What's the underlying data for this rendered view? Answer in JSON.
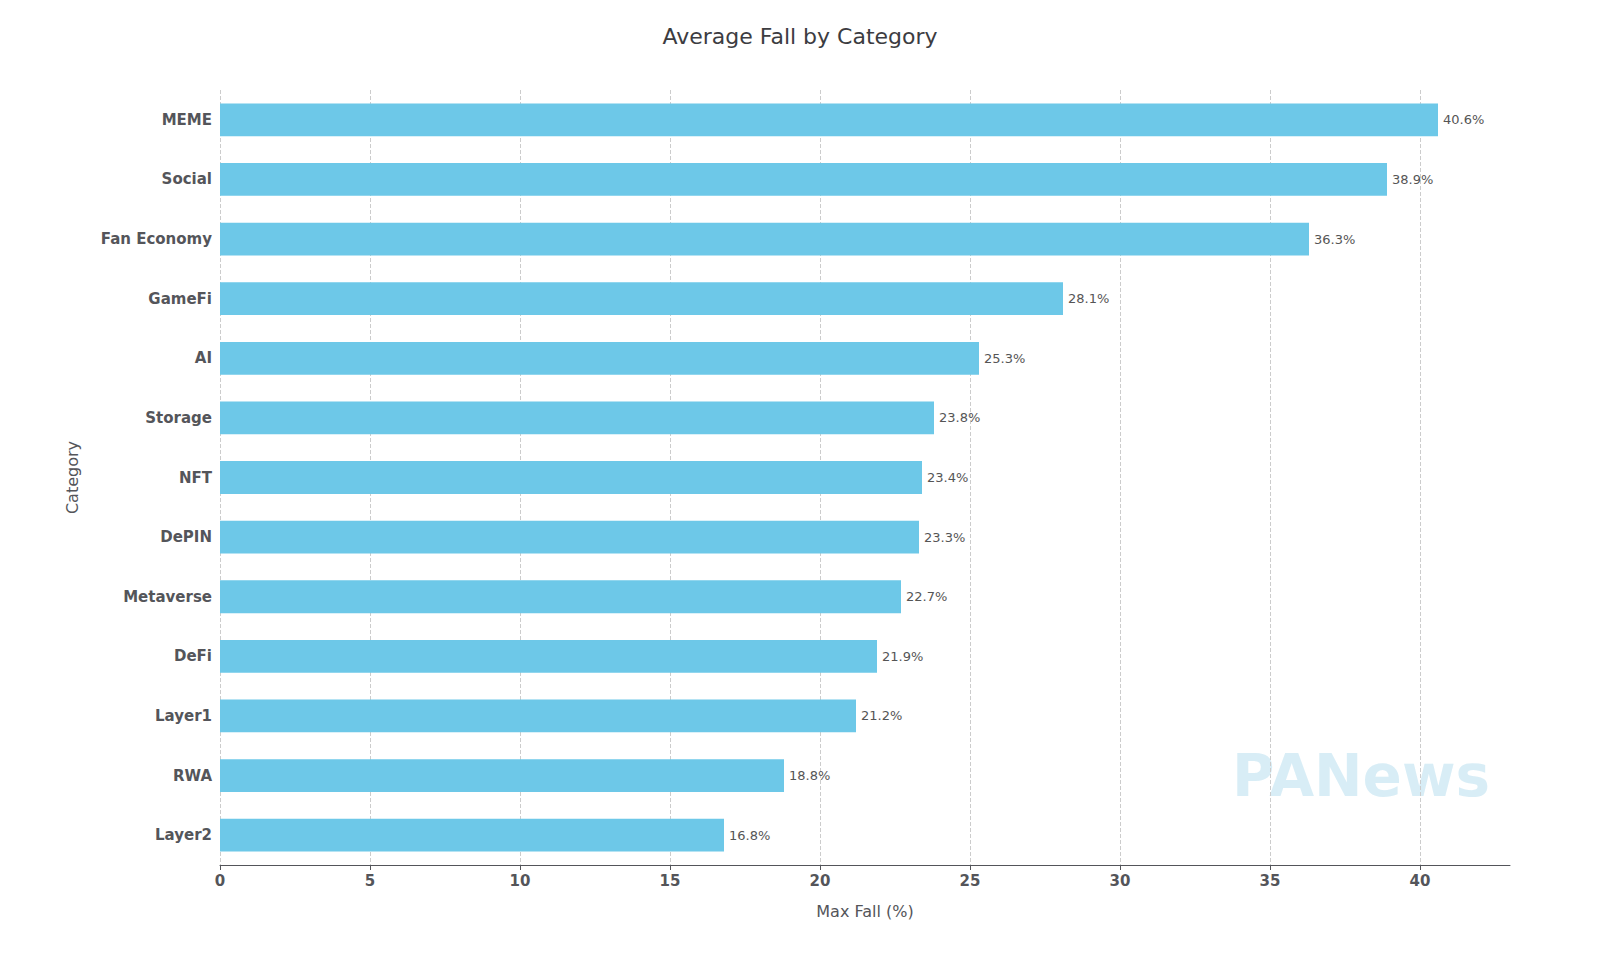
{
  "chart_data": {
    "type": "bar",
    "orientation": "horizontal",
    "title": "Average Fall by Category",
    "xlabel": "Max Fall (%)",
    "ylabel": "Category",
    "categories": [
      "Layer2",
      "RWA",
      "Layer1",
      "DeFi",
      "Metaverse",
      "DePIN",
      "NFT",
      "Storage",
      "AI",
      "GameFi",
      "Fan Economy",
      "Social",
      "MEME"
    ],
    "values": [
      16.8,
      18.8,
      21.2,
      21.9,
      22.7,
      23.3,
      23.4,
      23.8,
      25.3,
      28.1,
      36.3,
      38.9,
      40.6
    ],
    "value_labels": [
      "16.8%",
      "18.8%",
      "21.2%",
      "21.9%",
      "22.7%",
      "23.3%",
      "23.4%",
      "23.8%",
      "25.3%",
      "28.1%",
      "36.3%",
      "38.9%",
      "40.6%"
    ],
    "data_labels": true,
    "color": "#6DC8E8",
    "xlim": [
      0,
      43
    ],
    "xticks": [
      0,
      5,
      10,
      15,
      20,
      25,
      30,
      35,
      40
    ],
    "grid": true,
    "annotations": [
      "PANews"
    ]
  }
}
